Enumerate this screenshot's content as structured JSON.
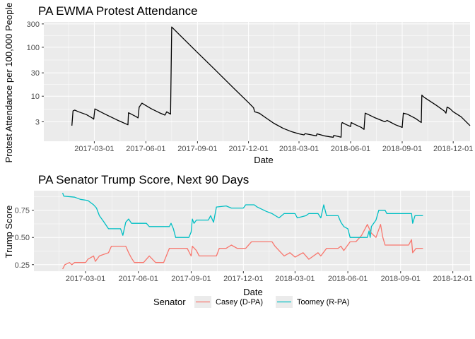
{
  "chart_data": [
    {
      "type": "line",
      "title": "PA EWMA Protest Attendance",
      "xlabel": "Date",
      "ylabel": "Protest Attendance per 100,000 People",
      "yscale": "log",
      "xlim": [
        "2016-12-01",
        "2018-12-31"
      ],
      "ylim": [
        1.2,
        330
      ],
      "x_ticks": [
        "2017-03-01",
        "2017-06-01",
        "2017-09-01",
        "2017-12-01",
        "2018-03-01",
        "2018-06-01",
        "2018-09-01",
        "2018-12-01"
      ],
      "y_ticks": [
        3,
        10,
        30,
        100,
        300
      ],
      "y_tick_labels": [
        "3",
        "10",
        "30",
        "100",
        "300"
      ],
      "grid": true,
      "series": [
        {
          "color": "#000000",
          "points": [
            [
              "2017-01-20",
              2.5
            ],
            [
              "2017-01-22",
              5.0
            ],
            [
              "2017-01-25",
              5.2
            ],
            [
              "2017-02-01",
              4.8
            ],
            [
              "2017-02-15",
              4.2
            ],
            [
              "2017-02-25",
              3.6
            ],
            [
              "2017-02-28",
              3.4
            ],
            [
              "2017-03-02",
              5.5
            ],
            [
              "2017-03-20",
              4.3
            ],
            [
              "2017-04-10",
              3.3
            ],
            [
              "2017-04-30",
              2.6
            ],
            [
              "2017-05-01",
              4.6
            ],
            [
              "2017-05-15",
              3.8
            ],
            [
              "2017-05-18",
              3.6
            ],
            [
              "2017-05-20",
              6.0
            ],
            [
              "2017-05-25",
              7.2
            ],
            [
              "2017-06-10",
              5.6
            ],
            [
              "2017-06-25",
              4.6
            ],
            [
              "2017-07-05",
              4.1
            ],
            [
              "2017-07-08",
              4.8
            ],
            [
              "2017-07-15",
              4.3
            ],
            [
              "2017-07-17",
              260
            ],
            [
              "2017-08-01",
              175
            ],
            [
              "2017-09-01",
              78
            ],
            [
              "2017-10-01",
              36
            ],
            [
              "2017-11-01",
              16
            ],
            [
              "2017-12-01",
              7.4
            ],
            [
              "2017-12-10",
              5.8
            ],
            [
              "2017-12-12",
              4.8
            ],
            [
              "2017-12-20",
              4.5
            ],
            [
              "2018-01-01",
              3.6
            ],
            [
              "2018-01-15",
              2.8
            ],
            [
              "2018-02-01",
              2.2
            ],
            [
              "2018-02-15",
              1.9
            ],
            [
              "2018-03-01",
              1.7
            ],
            [
              "2018-03-10",
              1.62
            ],
            [
              "2018-03-12",
              1.72
            ],
            [
              "2018-03-25",
              1.6
            ],
            [
              "2018-04-01",
              1.55
            ],
            [
              "2018-04-02",
              1.7
            ],
            [
              "2018-04-15",
              1.55
            ],
            [
              "2018-04-25",
              1.48
            ],
            [
              "2018-05-01",
              1.45
            ],
            [
              "2018-05-02",
              1.58
            ],
            [
              "2018-05-10",
              1.5
            ],
            [
              "2018-05-15",
              1.45
            ],
            [
              "2018-05-16",
              2.7
            ],
            [
              "2018-05-17",
              2.9
            ],
            [
              "2018-05-25",
              2.6
            ],
            [
              "2018-06-01",
              2.4
            ],
            [
              "2018-06-02",
              2.9
            ],
            [
              "2018-06-10",
              2.6
            ],
            [
              "2018-06-20",
              2.3
            ],
            [
              "2018-06-25",
              2.1
            ],
            [
              "2018-06-27",
              4.5
            ],
            [
              "2018-07-01",
              4.3
            ],
            [
              "2018-07-15",
              3.6
            ],
            [
              "2018-08-01",
              3.0
            ],
            [
              "2018-08-05",
              3.2
            ],
            [
              "2018-08-20",
              2.6
            ],
            [
              "2018-09-01",
              2.3
            ],
            [
              "2018-09-03",
              4.5
            ],
            [
              "2018-09-10",
              4.3
            ],
            [
              "2018-09-25",
              3.5
            ],
            [
              "2018-10-05",
              2.9
            ],
            [
              "2018-10-06",
              10.5
            ],
            [
              "2018-10-10",
              9.5
            ],
            [
              "2018-11-01",
              6.5
            ],
            [
              "2018-11-15",
              5.0
            ],
            [
              "2018-11-18",
              4.5
            ],
            [
              "2018-11-20",
              6.0
            ],
            [
              "2018-11-25",
              5.6
            ],
            [
              "2018-12-01",
              4.8
            ],
            [
              "2018-12-15",
              3.8
            ],
            [
              "2018-12-31",
              2.5
            ]
          ]
        }
      ]
    },
    {
      "type": "line",
      "title": "PA Senator Trump Score, Next 90 Days",
      "xlabel": "Date",
      "ylabel": "Trump Score",
      "xlim": [
        "2016-12-01",
        "2018-12-31"
      ],
      "ylim": [
        0.19,
        0.93
      ],
      "x_ticks": [
        "2017-03-01",
        "2017-06-01",
        "2017-09-01",
        "2017-12-01",
        "2018-03-01",
        "2018-06-01",
        "2018-09-01",
        "2018-12-01"
      ],
      "y_ticks": [
        0.25,
        0.5,
        0.75
      ],
      "y_tick_labels": [
        "0.25",
        "0.50",
        "0.75"
      ],
      "grid": true,
      "legend": {
        "title": "Senator",
        "position": "bottom"
      },
      "series": [
        {
          "name": "Casey (D-PA)",
          "color": "#F8766D",
          "points": [
            [
              "2017-01-20",
              0.21
            ],
            [
              "2017-01-24",
              0.25
            ],
            [
              "2017-02-01",
              0.27
            ],
            [
              "2017-02-05",
              0.25
            ],
            [
              "2017-02-10",
              0.27
            ],
            [
              "2017-03-01",
              0.27
            ],
            [
              "2017-03-05",
              0.3
            ],
            [
              "2017-03-15",
              0.33
            ],
            [
              "2017-03-18",
              0.28
            ],
            [
              "2017-03-25",
              0.33
            ],
            [
              "2017-04-10",
              0.36
            ],
            [
              "2017-04-15",
              0.42
            ],
            [
              "2017-05-10",
              0.42
            ],
            [
              "2017-05-15",
              0.36
            ],
            [
              "2017-05-20",
              0.31
            ],
            [
              "2017-05-25",
              0.27
            ],
            [
              "2017-06-10",
              0.27
            ],
            [
              "2017-06-20",
              0.33
            ],
            [
              "2017-07-01",
              0.27
            ],
            [
              "2017-07-15",
              0.27
            ],
            [
              "2017-07-25",
              0.4
            ],
            [
              "2017-08-15",
              0.4
            ],
            [
              "2017-08-25",
              0.4
            ],
            [
              "2017-09-01",
              0.33
            ],
            [
              "2017-09-03",
              0.42
            ],
            [
              "2017-09-10",
              0.38
            ],
            [
              "2017-09-15",
              0.33
            ],
            [
              "2017-10-15",
              0.33
            ],
            [
              "2017-10-20",
              0.4
            ],
            [
              "2017-11-01",
              0.4
            ],
            [
              "2017-11-10",
              0.43
            ],
            [
              "2017-11-20",
              0.4
            ],
            [
              "2017-12-05",
              0.4
            ],
            [
              "2017-12-15",
              0.46
            ],
            [
              "2018-01-20",
              0.46
            ],
            [
              "2018-01-25",
              0.42
            ],
            [
              "2018-02-01",
              0.38
            ],
            [
              "2018-02-10",
              0.33
            ],
            [
              "2018-02-20",
              0.36
            ],
            [
              "2018-03-01",
              0.32
            ],
            [
              "2018-03-15",
              0.36
            ],
            [
              "2018-03-25",
              0.3
            ],
            [
              "2018-04-10",
              0.36
            ],
            [
              "2018-04-15",
              0.33
            ],
            [
              "2018-04-25",
              0.4
            ],
            [
              "2018-05-15",
              0.4
            ],
            [
              "2018-05-20",
              0.42
            ],
            [
              "2018-05-25",
              0.38
            ],
            [
              "2018-06-05",
              0.46
            ],
            [
              "2018-06-15",
              0.46
            ],
            [
              "2018-06-25",
              0.52
            ],
            [
              "2018-07-05",
              0.62
            ],
            [
              "2018-07-12",
              0.54
            ],
            [
              "2018-07-20",
              0.5
            ],
            [
              "2018-07-28",
              0.62
            ],
            [
              "2018-08-01",
              0.5
            ],
            [
              "2018-08-05",
              0.43
            ],
            [
              "2018-09-15",
              0.43
            ],
            [
              "2018-09-20",
              0.48
            ],
            [
              "2018-09-22",
              0.36
            ],
            [
              "2018-09-28",
              0.4
            ],
            [
              "2018-10-10",
              0.4
            ]
          ]
        },
        {
          "name": "Toomey (R-PA)",
          "color": "#00BFC4",
          "points": [
            [
              "2017-01-20",
              0.91
            ],
            [
              "2017-01-22",
              0.88
            ],
            [
              "2017-02-10",
              0.87
            ],
            [
              "2017-02-20",
              0.85
            ],
            [
              "2017-03-05",
              0.84
            ],
            [
              "2017-03-15",
              0.8
            ],
            [
              "2017-03-20",
              0.77
            ],
            [
              "2017-03-25",
              0.7
            ],
            [
              "2017-04-01",
              0.65
            ],
            [
              "2017-04-10",
              0.58
            ],
            [
              "2017-05-01",
              0.58
            ],
            [
              "2017-05-05",
              0.52
            ],
            [
              "2017-05-10",
              0.64
            ],
            [
              "2017-05-15",
              0.67
            ],
            [
              "2017-05-20",
              0.63
            ],
            [
              "2017-06-15",
              0.63
            ],
            [
              "2017-06-20",
              0.6
            ],
            [
              "2017-07-25",
              0.6
            ],
            [
              "2017-07-28",
              0.63
            ],
            [
              "2017-08-01",
              0.58
            ],
            [
              "2017-08-05",
              0.5
            ],
            [
              "2017-08-28",
              0.5
            ],
            [
              "2017-09-01",
              0.55
            ],
            [
              "2017-09-03",
              0.67
            ],
            [
              "2017-09-06",
              0.63
            ],
            [
              "2017-09-10",
              0.66
            ],
            [
              "2017-10-01",
              0.66
            ],
            [
              "2017-10-05",
              0.7
            ],
            [
              "2017-10-10",
              0.64
            ],
            [
              "2017-10-15",
              0.78
            ],
            [
              "2017-11-01",
              0.79
            ],
            [
              "2017-11-10",
              0.77
            ],
            [
              "2017-12-01",
              0.77
            ],
            [
              "2017-12-05",
              0.8
            ],
            [
              "2017-12-20",
              0.8
            ],
            [
              "2017-12-25",
              0.78
            ],
            [
              "2018-01-10",
              0.74
            ],
            [
              "2018-01-20",
              0.72
            ],
            [
              "2018-02-01",
              0.68
            ],
            [
              "2018-02-10",
              0.72
            ],
            [
              "2018-03-01",
              0.72
            ],
            [
              "2018-03-05",
              0.68
            ],
            [
              "2018-03-20",
              0.7
            ],
            [
              "2018-03-25",
              0.72
            ],
            [
              "2018-04-10",
              0.72
            ],
            [
              "2018-04-15",
              0.68
            ],
            [
              "2018-04-20",
              0.8
            ],
            [
              "2018-04-25",
              0.7
            ],
            [
              "2018-05-15",
              0.7
            ],
            [
              "2018-05-20",
              0.64
            ],
            [
              "2018-05-25",
              0.6
            ],
            [
              "2018-06-01",
              0.58
            ],
            [
              "2018-06-05",
              0.5
            ],
            [
              "2018-07-05",
              0.5
            ],
            [
              "2018-07-08",
              0.56
            ],
            [
              "2018-07-10",
              0.5
            ],
            [
              "2018-07-12",
              0.6
            ],
            [
              "2018-07-20",
              0.66
            ],
            [
              "2018-07-25",
              0.75
            ],
            [
              "2018-08-05",
              0.75
            ],
            [
              "2018-08-08",
              0.72
            ],
            [
              "2018-09-20",
              0.72
            ],
            [
              "2018-09-22",
              0.63
            ],
            [
              "2018-09-26",
              0.7
            ],
            [
              "2018-10-10",
              0.7
            ]
          ]
        }
      ]
    }
  ]
}
